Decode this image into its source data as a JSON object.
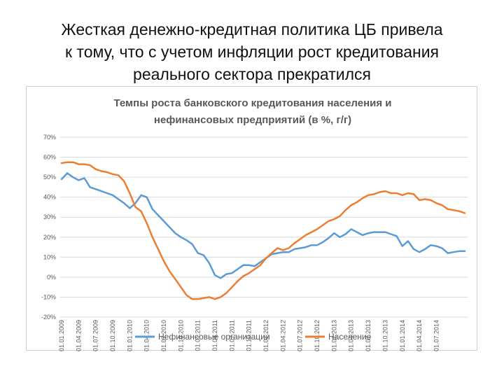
{
  "slide": {
    "title_lines": [
      "Жесткая денежно-кредитная политика ЦБ привела",
      "к тому, что с учетом инфляции рост кредитования",
      "реального сектора прекратился"
    ]
  },
  "chart_data": {
    "type": "line",
    "title_lines": [
      "Темпы роста банковского кредитования населения и",
      "нефинансовых предприятий (в %, г/г)"
    ],
    "title": "Темпы роста банковского кредитования населения и нефинансовых предприятий (в %, г/г)",
    "ylim": [
      -20,
      70
    ],
    "yticks": [
      -20,
      -10,
      0,
      10,
      20,
      30,
      40,
      50,
      60,
      70
    ],
    "ytick_labels": [
      "-20%",
      "-10%",
      "0%",
      "10%",
      "20%",
      "30%",
      "40%",
      "50%",
      "60%",
      "70%"
    ],
    "x_count": 72,
    "xtick_labels": [
      "01.01.2009",
      "01.04.2009",
      "01.07.2009",
      "01.10.2009",
      "01.01.2010",
      "01.04.2010",
      "01.07.2010",
      "01.10.2010",
      "01.01.2011",
      "01.04.2011",
      "01.07.2011",
      "01.10.2011",
      "01.01.2012",
      "01.04.2012",
      "01.07.2012",
      "01.10.2012",
      "01.01.2013",
      "01.04.2013",
      "01.07.2013",
      "01.10.2013",
      "01.01.2014",
      "01.04.2014",
      "01.07.2014"
    ],
    "grid": true,
    "legend_position": "bottom",
    "series": [
      {
        "name": "Нефинансовые организации",
        "color": "#5b9bd5",
        "values": [
          49,
          52,
          50,
          48.5,
          49.5,
          45,
          44,
          43,
          42,
          41,
          39,
          37,
          34.5,
          37,
          41,
          40,
          34,
          31,
          28,
          25,
          22,
          20,
          18.5,
          16.5,
          12,
          11,
          7,
          1,
          -0.5,
          1.5,
          2,
          4,
          6,
          6,
          5.5,
          7.5,
          9.5,
          11.5,
          12,
          12.5,
          12.5,
          14,
          14.5,
          15,
          16,
          16,
          17.5,
          19.5,
          22,
          20,
          21.5,
          24,
          22.5,
          21,
          22,
          22.5,
          22.5,
          22.5,
          21.5,
          20.5,
          15.5,
          18,
          14,
          12.5,
          14,
          16,
          15.5,
          14.5,
          12,
          12.5,
          13,
          13
        ]
      },
      {
        "name": "Население",
        "color": "#ed7d31",
        "values": [
          57,
          57.5,
          57.5,
          56.5,
          56.5,
          56,
          54,
          53,
          52.5,
          51.5,
          51,
          48,
          42,
          35,
          33,
          27,
          20,
          14,
          8,
          3,
          -1,
          -5,
          -9,
          -11,
          -11,
          -10.5,
          -10,
          -11,
          -10,
          -8,
          -5,
          -2,
          0.5,
          2,
          4,
          6,
          9.5,
          12,
          14.5,
          13.5,
          14.5,
          17,
          19,
          21,
          22.5,
          24,
          26,
          28,
          29,
          30.5,
          33.5,
          36,
          37.5,
          39.5,
          41,
          41.5,
          42.5,
          43,
          42,
          42,
          41,
          42,
          41.5,
          38.5,
          39,
          38.5,
          37,
          36,
          34,
          33.5,
          33,
          32
        ]
      }
    ]
  }
}
